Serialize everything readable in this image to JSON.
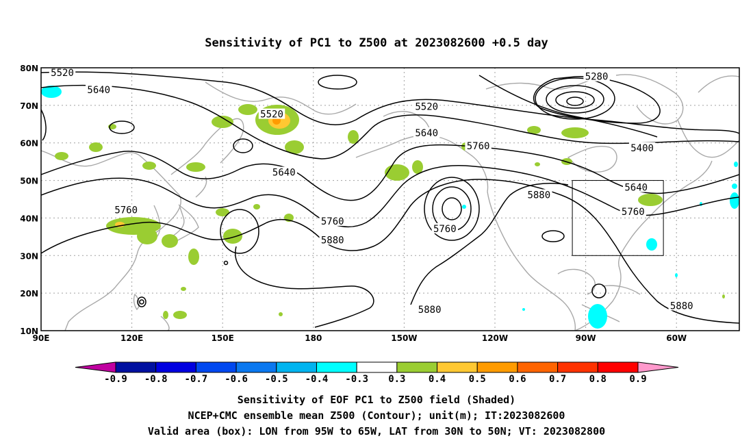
{
  "title": "Sensitivity of PC1 to Z500 at 2023082600 +0.5 day",
  "lat_labels": [
    "80N",
    "70N",
    "60N",
    "50N",
    "40N",
    "30N",
    "20N",
    "10N"
  ],
  "lon_labels": [
    "90E",
    "120E",
    "150E",
    "180",
    "150W",
    "120W",
    "90W",
    "60W"
  ],
  "contour_labels": [
    {
      "text": "5520",
      "lon": 97,
      "lat": 78.5
    },
    {
      "text": "5640",
      "lon": 109,
      "lat": 74
    },
    {
      "text": "5520",
      "lon": 166,
      "lat": 67.5
    },
    {
      "text": "5640",
      "lon": 170,
      "lat": 52
    },
    {
      "text": "5520",
      "lon": -143,
      "lat": 69.5
    },
    {
      "text": "5640",
      "lon": -143,
      "lat": 62.5
    },
    {
      "text": "5760",
      "lon": -126,
      "lat": 59
    },
    {
      "text": "5280",
      "lon": -87,
      "lat": 77.5
    },
    {
      "text": "5400",
      "lon": -72,
      "lat": 58.5
    },
    {
      "text": "5640",
      "lon": -74,
      "lat": 48
    },
    {
      "text": "5760",
      "lon": -75,
      "lat": 41.5
    },
    {
      "text": "5880",
      "lon": -106,
      "lat": 46
    },
    {
      "text": "5760",
      "lon": -137,
      "lat": 37
    },
    {
      "text": "5760",
      "lon": 186,
      "lat": 39
    },
    {
      "text": "5880",
      "lon": 186,
      "lat": 34
    },
    {
      "text": "5760",
      "lon": 118,
      "lat": 42
    },
    {
      "text": "5880",
      "lon": -142,
      "lat": 15.5
    },
    {
      "text": "5880",
      "lon": -59,
      "lat": 16.5
    }
  ],
  "colorbar": {
    "labels": [
      "-0.9",
      "-0.8",
      "-0.7",
      "-0.6",
      "-0.5",
      "-0.4",
      "-0.3",
      "0.3",
      "0.4",
      "0.5",
      "0.6",
      "0.7",
      "0.8",
      "0.9"
    ],
    "colors": [
      "#c000a0",
      "#0010a0",
      "#0000e0",
      "#0048f0",
      "#0a78f0",
      "#00b4f0",
      "#00ffff",
      "#ffffff",
      "#9acd32",
      "#ffc832",
      "#ff9b00",
      "#ff6400",
      "#ff3200",
      "#ff0000",
      "#ff99cc"
    ]
  },
  "valid_box": {
    "lon_min": -95,
    "lon_max": -65,
    "lat_min": 30,
    "lat_max": 50
  },
  "footer": {
    "line1": "Sensitivity of EOF PC1 to Z500 field (Shaded)",
    "line2": "NCEP+CMC ensemble mean Z500 (Contour); unit(m); IT:2023082600",
    "line3": "Valid area (box): LON from 95W to 65W, LAT from 30N to 50N; VT: 2023082800"
  }
}
